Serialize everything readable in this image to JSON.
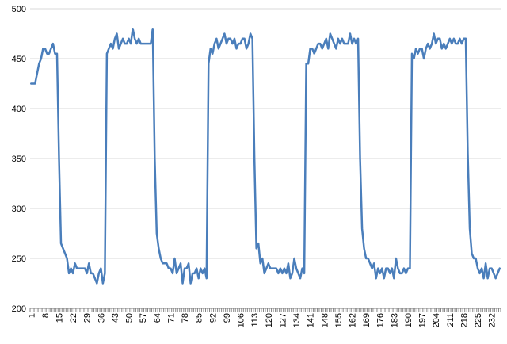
{
  "chart_data": {
    "type": "line",
    "title": "",
    "xlabel": "",
    "ylabel": "",
    "ylim": [
      200,
      500
    ],
    "y_ticks": [
      200,
      250,
      300,
      350,
      400,
      450,
      500
    ],
    "x_tick_labels": [
      "1",
      "8",
      "15",
      "22",
      "29",
      "36",
      "43",
      "50",
      "57",
      "64",
      "71",
      "78",
      "85",
      "92",
      "99",
      "106",
      "113",
      "120",
      "127",
      "134",
      "141",
      "148",
      "155",
      "162",
      "169",
      "176",
      "183",
      "190",
      "197",
      "204",
      "211",
      "218",
      "225",
      "232"
    ],
    "x_tick_label_rotation": "vertical",
    "grid": {
      "horizontal": true,
      "vertical": false
    },
    "legend": "none",
    "series_color": "#4a7ebb",
    "x": [
      1,
      2,
      3,
      4,
      5,
      6,
      7,
      8,
      9,
      10,
      11,
      12,
      13,
      14,
      15,
      16,
      17,
      18,
      19,
      20,
      21,
      22,
      23,
      24,
      25,
      26,
      27,
      28,
      29,
      30,
      31,
      32,
      33,
      34,
      35,
      36,
      37,
      38,
      39,
      40,
      41,
      42,
      43,
      44,
      45,
      46,
      47,
      48,
      49,
      50,
      51,
      52,
      53,
      54,
      55,
      56,
      57,
      58,
      59,
      60,
      61,
      62,
      63,
      64,
      65,
      66,
      67,
      68,
      69,
      70,
      71,
      72,
      73,
      74,
      75,
      76,
      77,
      78,
      79,
      80,
      81,
      82,
      83,
      84,
      85,
      86,
      87,
      88,
      89,
      90,
      91,
      92,
      93,
      94,
      95,
      96,
      97,
      98,
      99,
      100,
      101,
      102,
      103,
      104,
      105,
      106,
      107,
      108,
      109,
      110,
      111,
      112,
      113,
      114,
      115,
      116,
      117,
      118,
      119,
      120,
      121,
      122,
      123,
      124,
      125,
      126,
      127,
      128,
      129,
      130,
      131,
      132,
      133,
      134,
      135,
      136,
      137,
      138,
      139,
      140,
      141,
      142,
      143,
      144,
      145,
      146,
      147,
      148,
      149,
      150,
      151,
      152,
      153,
      154,
      155,
      156,
      157,
      158,
      159,
      160,
      161,
      162,
      163,
      164,
      165,
      166,
      167,
      168,
      169,
      170,
      171,
      172,
      173,
      174,
      175,
      176,
      177,
      178,
      179,
      180,
      181,
      182,
      183,
      184,
      185,
      186,
      187,
      188,
      189,
      190,
      191,
      192,
      193,
      194,
      195,
      196,
      197,
      198,
      199,
      200,
      201,
      202,
      203,
      204,
      205,
      206,
      207,
      208,
      209,
      210,
      211,
      212,
      213,
      214,
      215,
      216,
      217,
      218,
      219,
      220,
      221,
      222,
      223,
      224,
      225,
      226,
      227,
      228,
      229,
      230,
      231,
      232,
      233,
      234,
      235,
      236
    ],
    "series": [
      {
        "name": "",
        "values": [
          425,
          425,
          425,
          435,
          445,
          450,
          460,
          460,
          455,
          455,
          460,
          465,
          455,
          455,
          350,
          265,
          260,
          255,
          250,
          235,
          240,
          235,
          245,
          240,
          240,
          240,
          240,
          240,
          235,
          245,
          235,
          235,
          230,
          225,
          235,
          240,
          225,
          235,
          455,
          460,
          465,
          460,
          470,
          475,
          460,
          465,
          470,
          465,
          465,
          470,
          465,
          480,
          470,
          465,
          470,
          465,
          465,
          465,
          465,
          465,
          465,
          480,
          350,
          275,
          260,
          250,
          245,
          245,
          245,
          240,
          240,
          235,
          250,
          235,
          240,
          245,
          225,
          240,
          240,
          245,
          225,
          235,
          235,
          240,
          230,
          240,
          235,
          240,
          230,
          445,
          460,
          455,
          465,
          470,
          460,
          465,
          470,
          475,
          465,
          470,
          470,
          465,
          470,
          460,
          465,
          465,
          470,
          470,
          460,
          465,
          475,
          470,
          350,
          260,
          265,
          245,
          250,
          235,
          240,
          245,
          240,
          240,
          240,
          240,
          235,
          240,
          235,
          240,
          235,
          245,
          230,
          235,
          250,
          240,
          235,
          230,
          240,
          235,
          445,
          445,
          460,
          460,
          455,
          460,
          465,
          465,
          460,
          465,
          470,
          460,
          475,
          470,
          465,
          460,
          470,
          465,
          470,
          465,
          465,
          465,
          475,
          465,
          470,
          465,
          470,
          350,
          280,
          260,
          250,
          250,
          245,
          240,
          245,
          230,
          240,
          235,
          240,
          230,
          240,
          240,
          235,
          240,
          230,
          250,
          240,
          235,
          235,
          240,
          235,
          240,
          240,
          455,
          450,
          460,
          455,
          460,
          460,
          450,
          460,
          465,
          460,
          465,
          475,
          465,
          470,
          470,
          460,
          465,
          460,
          465,
          470,
          465,
          470,
          465,
          465,
          470,
          465,
          470,
          470,
          355,
          280,
          255,
          250,
          250,
          240,
          235,
          240,
          230,
          245,
          230,
          240,
          240,
          235,
          230,
          235,
          240
        ]
      }
    ]
  }
}
